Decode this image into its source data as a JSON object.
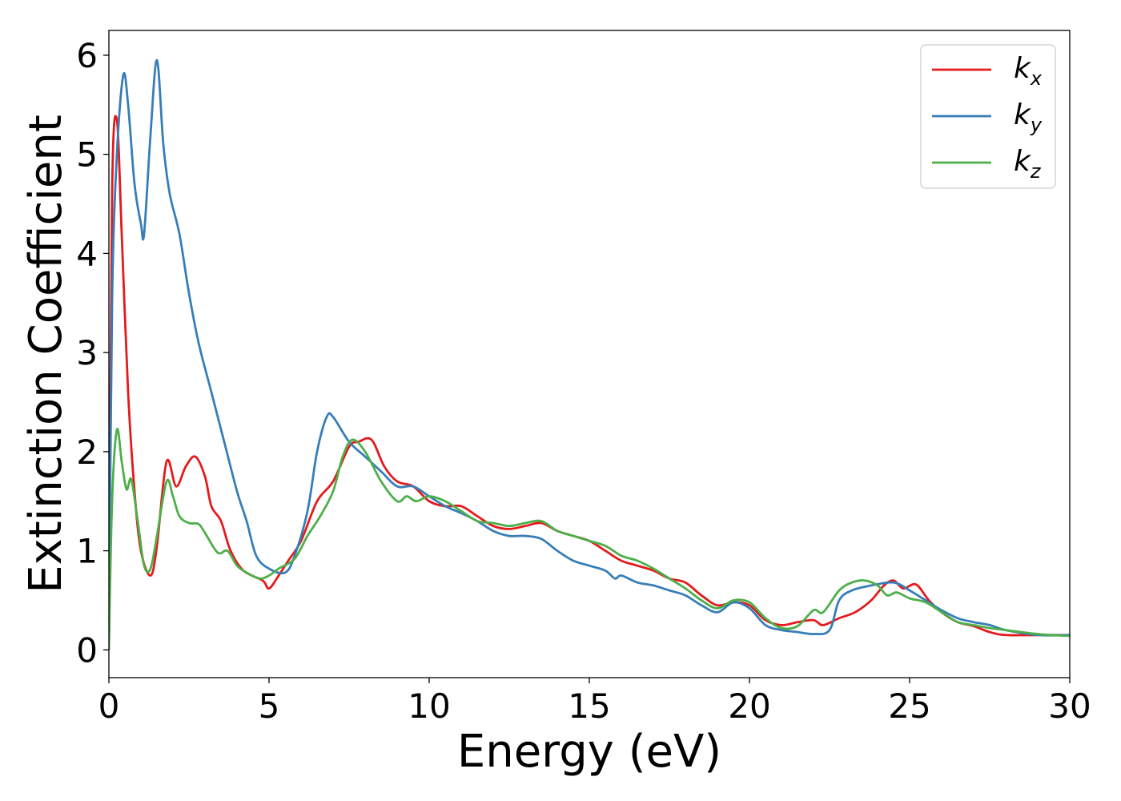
{
  "chart_data": {
    "type": "line",
    "title": "",
    "xlabel": "Energy (eV)",
    "ylabel": "Extinction Coefficient",
    "xlim": [
      0,
      30
    ],
    "ylim": [
      -0.28,
      6.25
    ],
    "x_ticks": [
      "0",
      "5",
      "10",
      "15",
      "20",
      "25",
      "30"
    ],
    "y_ticks": [
      "0",
      "1",
      "2",
      "3",
      "4",
      "5",
      "6"
    ],
    "grid": false,
    "legend_position": "top-right",
    "series": [
      {
        "name": "k_x",
        "legend_main": "k",
        "legend_sub": "x",
        "color": "#e41a1c",
        "points": [
          [
            0,
            0
          ],
          [
            0.1,
            4.6
          ],
          [
            0.25,
            5.35
          ],
          [
            0.4,
            4.2
          ],
          [
            0.6,
            2.6
          ],
          [
            0.8,
            1.6
          ],
          [
            1.0,
            1.0
          ],
          [
            1.3,
            0.75
          ],
          [
            1.5,
            1.05
          ],
          [
            1.8,
            1.9
          ],
          [
            2.1,
            1.65
          ],
          [
            2.4,
            1.85
          ],
          [
            2.7,
            1.95
          ],
          [
            3.0,
            1.75
          ],
          [
            3.2,
            1.45
          ],
          [
            3.5,
            1.3
          ],
          [
            3.8,
            1.0
          ],
          [
            4.2,
            0.8
          ],
          [
            4.8,
            0.7
          ],
          [
            5.0,
            0.62
          ],
          [
            5.3,
            0.75
          ],
          [
            5.6,
            0.9
          ],
          [
            6.0,
            1.1
          ],
          [
            6.5,
            1.5
          ],
          [
            7.0,
            1.7
          ],
          [
            7.5,
            2.05
          ],
          [
            7.8,
            2.1
          ],
          [
            8.2,
            2.12
          ],
          [
            8.6,
            1.85
          ],
          [
            9.0,
            1.7
          ],
          [
            9.5,
            1.65
          ],
          [
            10.0,
            1.5
          ],
          [
            10.5,
            1.45
          ],
          [
            11.0,
            1.45
          ],
          [
            11.5,
            1.35
          ],
          [
            12.0,
            1.25
          ],
          [
            12.5,
            1.22
          ],
          [
            13.0,
            1.25
          ],
          [
            13.5,
            1.28
          ],
          [
            14.0,
            1.2
          ],
          [
            14.5,
            1.15
          ],
          [
            15.0,
            1.1
          ],
          [
            15.5,
            1.0
          ],
          [
            16.0,
            0.9
          ],
          [
            16.5,
            0.85
          ],
          [
            17.0,
            0.8
          ],
          [
            17.5,
            0.72
          ],
          [
            18.0,
            0.68
          ],
          [
            18.5,
            0.55
          ],
          [
            19.0,
            0.45
          ],
          [
            19.5,
            0.48
          ],
          [
            20.0,
            0.45
          ],
          [
            20.5,
            0.3
          ],
          [
            21.0,
            0.25
          ],
          [
            21.5,
            0.28
          ],
          [
            22.0,
            0.3
          ],
          [
            22.3,
            0.25
          ],
          [
            22.8,
            0.32
          ],
          [
            23.3,
            0.38
          ],
          [
            23.8,
            0.5
          ],
          [
            24.2,
            0.65
          ],
          [
            24.5,
            0.7
          ],
          [
            24.8,
            0.62
          ],
          [
            25.2,
            0.66
          ],
          [
            25.6,
            0.5
          ],
          [
            26.0,
            0.38
          ],
          [
            26.5,
            0.28
          ],
          [
            27.0,
            0.24
          ],
          [
            27.5,
            0.18
          ],
          [
            28.0,
            0.15
          ],
          [
            29.0,
            0.15
          ],
          [
            30.0,
            0.15
          ]
        ]
      },
      {
        "name": "k_y",
        "legend_main": "k",
        "legend_sub": "y",
        "color": "#377eb8",
        "points": [
          [
            0,
            0
          ],
          [
            0.1,
            3.5
          ],
          [
            0.25,
            5.0
          ],
          [
            0.45,
            5.8
          ],
          [
            0.6,
            5.5
          ],
          [
            0.8,
            4.7
          ],
          [
            1.0,
            4.3
          ],
          [
            1.1,
            4.2
          ],
          [
            1.3,
            5.2
          ],
          [
            1.5,
            5.95
          ],
          [
            1.7,
            5.1
          ],
          [
            1.9,
            4.6
          ],
          [
            2.2,
            4.2
          ],
          [
            2.5,
            3.6
          ],
          [
            2.8,
            3.1
          ],
          [
            3.2,
            2.6
          ],
          [
            3.6,
            2.1
          ],
          [
            4.0,
            1.6
          ],
          [
            4.3,
            1.3
          ],
          [
            4.6,
            0.95
          ],
          [
            5.0,
            0.82
          ],
          [
            5.5,
            0.78
          ],
          [
            5.8,
            0.95
          ],
          [
            6.2,
            1.4
          ],
          [
            6.5,
            2.0
          ],
          [
            6.8,
            2.35
          ],
          [
            7.0,
            2.35
          ],
          [
            7.5,
            2.1
          ],
          [
            8.0,
            1.95
          ],
          [
            8.5,
            1.8
          ],
          [
            9.0,
            1.65
          ],
          [
            9.5,
            1.65
          ],
          [
            10.0,
            1.55
          ],
          [
            10.5,
            1.45
          ],
          [
            11.0,
            1.38
          ],
          [
            11.5,
            1.3
          ],
          [
            12.0,
            1.2
          ],
          [
            12.5,
            1.15
          ],
          [
            13.0,
            1.15
          ],
          [
            13.5,
            1.12
          ],
          [
            14.0,
            1.0
          ],
          [
            14.5,
            0.9
          ],
          [
            15.0,
            0.85
          ],
          [
            15.5,
            0.8
          ],
          [
            15.8,
            0.72
          ],
          [
            16.0,
            0.75
          ],
          [
            16.5,
            0.68
          ],
          [
            17.0,
            0.65
          ],
          [
            17.5,
            0.6
          ],
          [
            18.0,
            0.55
          ],
          [
            18.5,
            0.45
          ],
          [
            19.0,
            0.38
          ],
          [
            19.5,
            0.48
          ],
          [
            20.0,
            0.42
          ],
          [
            20.5,
            0.25
          ],
          [
            21.0,
            0.2
          ],
          [
            21.5,
            0.18
          ],
          [
            22.0,
            0.16
          ],
          [
            22.5,
            0.2
          ],
          [
            22.8,
            0.5
          ],
          [
            23.2,
            0.6
          ],
          [
            23.8,
            0.65
          ],
          [
            24.5,
            0.68
          ],
          [
            25.0,
            0.6
          ],
          [
            25.5,
            0.5
          ],
          [
            26.0,
            0.4
          ],
          [
            26.5,
            0.32
          ],
          [
            27.0,
            0.28
          ],
          [
            27.5,
            0.25
          ],
          [
            28.0,
            0.2
          ],
          [
            29.0,
            0.15
          ],
          [
            30.0,
            0.15
          ]
        ]
      },
      {
        "name": "k_z",
        "legend_main": "k",
        "legend_sub": "z",
        "color": "#4daf4a",
        "points": [
          [
            0,
            0
          ],
          [
            0.1,
            1.5
          ],
          [
            0.25,
            2.22
          ],
          [
            0.4,
            1.9
          ],
          [
            0.55,
            1.62
          ],
          [
            0.7,
            1.72
          ],
          [
            0.9,
            1.3
          ],
          [
            1.1,
            0.85
          ],
          [
            1.3,
            0.82
          ],
          [
            1.5,
            1.15
          ],
          [
            1.8,
            1.7
          ],
          [
            2.0,
            1.55
          ],
          [
            2.2,
            1.35
          ],
          [
            2.5,
            1.28
          ],
          [
            2.8,
            1.27
          ],
          [
            3.0,
            1.18
          ],
          [
            3.4,
            0.98
          ],
          [
            3.7,
            1.0
          ],
          [
            4.0,
            0.85
          ],
          [
            4.3,
            0.78
          ],
          [
            4.7,
            0.72
          ],
          [
            5.0,
            0.75
          ],
          [
            5.3,
            0.82
          ],
          [
            5.8,
            0.92
          ],
          [
            6.2,
            1.15
          ],
          [
            6.6,
            1.35
          ],
          [
            7.0,
            1.6
          ],
          [
            7.3,
            1.95
          ],
          [
            7.6,
            2.12
          ],
          [
            8.0,
            2.0
          ],
          [
            8.5,
            1.7
          ],
          [
            9.0,
            1.5
          ],
          [
            9.3,
            1.55
          ],
          [
            9.6,
            1.5
          ],
          [
            10.0,
            1.55
          ],
          [
            10.5,
            1.5
          ],
          [
            11.0,
            1.4
          ],
          [
            11.5,
            1.3
          ],
          [
            12.0,
            1.28
          ],
          [
            12.5,
            1.25
          ],
          [
            13.0,
            1.28
          ],
          [
            13.5,
            1.3
          ],
          [
            14.0,
            1.2
          ],
          [
            14.5,
            1.15
          ],
          [
            15.0,
            1.1
          ],
          [
            15.5,
            1.05
          ],
          [
            16.0,
            0.95
          ],
          [
            16.5,
            0.9
          ],
          [
            17.0,
            0.82
          ],
          [
            17.5,
            0.72
          ],
          [
            18.0,
            0.62
          ],
          [
            18.5,
            0.5
          ],
          [
            19.0,
            0.42
          ],
          [
            19.5,
            0.5
          ],
          [
            20.0,
            0.48
          ],
          [
            20.5,
            0.32
          ],
          [
            21.0,
            0.22
          ],
          [
            21.5,
            0.24
          ],
          [
            22.0,
            0.4
          ],
          [
            22.3,
            0.38
          ],
          [
            22.8,
            0.6
          ],
          [
            23.2,
            0.68
          ],
          [
            23.6,
            0.7
          ],
          [
            24.0,
            0.65
          ],
          [
            24.3,
            0.55
          ],
          [
            24.6,
            0.58
          ],
          [
            25.0,
            0.52
          ],
          [
            25.5,
            0.48
          ],
          [
            26.0,
            0.38
          ],
          [
            26.5,
            0.28
          ],
          [
            27.0,
            0.25
          ],
          [
            27.5,
            0.22
          ],
          [
            28.0,
            0.2
          ],
          [
            29.0,
            0.16
          ],
          [
            30.0,
            0.14
          ]
        ]
      }
    ]
  }
}
